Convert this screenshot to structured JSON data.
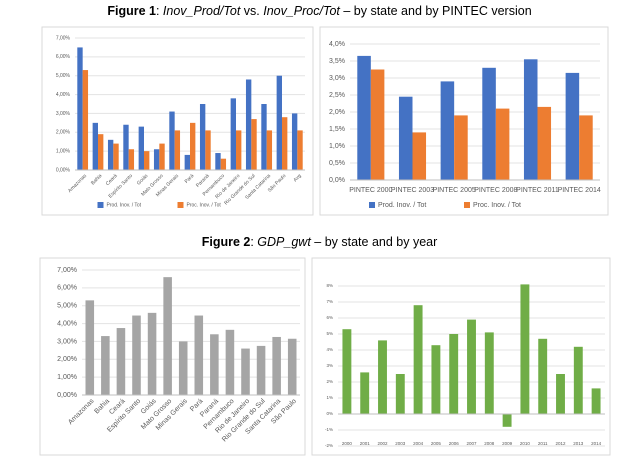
{
  "captions": [
    [
      "Figure 1",
      ": ",
      "Inov_Prod/Tot",
      " vs. ",
      "Inov_Proc/Tot",
      " – by state and by PINTEC version"
    ],
    [
      "Figure 2",
      ": ",
      "GDP_gwt",
      " – by state and by year"
    ]
  ],
  "chart_data": [
    {
      "type": "bar",
      "categories": [
        "Amazonas",
        "Bahia",
        "Ceará",
        "Espírito Santo",
        "Goiás",
        "Mato Grosso",
        "Minas Gerais",
        "Pará",
        "Paraná",
        "Pernambuco",
        "Rio de Janeiro",
        "Rio Grande do Sul",
        "Santa Catarina",
        "São Paulo",
        "Avg"
      ],
      "series": [
        {
          "name": "Prod. Inov. / Tot",
          "color": "#4472c4",
          "values": [
            6.5,
            2.5,
            1.6,
            2.4,
            2.3,
            1.1,
            3.1,
            0.8,
            3.5,
            0.9,
            3.8,
            4.8,
            3.5,
            5.0,
            3.0
          ]
        },
        {
          "name": "Proc. Inov. / Tot",
          "color": "#ed7d31",
          "values": [
            5.3,
            1.9,
            1.4,
            1.1,
            1.0,
            1.4,
            2.1,
            2.5,
            2.1,
            0.6,
            2.1,
            2.7,
            2.1,
            2.8,
            2.1
          ]
        }
      ],
      "ylim": [
        0,
        7
      ],
      "yticks": [
        {
          "value": 0,
          "label": "0,00%"
        },
        {
          "value": 1,
          "label": "1,00%"
        },
        {
          "value": 2,
          "label": "2,00%"
        },
        {
          "value": 3,
          "label": "3,00%"
        },
        {
          "value": 4,
          "label": "4,00%"
        },
        {
          "value": 5,
          "label": "5,00%"
        },
        {
          "value": 6,
          "label": "6,00%"
        },
        {
          "value": 7,
          "label": "7,00%"
        }
      ],
      "grid": true,
      "legend": "bottom"
    },
    {
      "type": "bar",
      "categories": [
        "PINTEC 2000",
        "PINTEC 2003",
        "PINTEC 2005",
        "PINTEC 2008",
        "PINTEC 2011",
        "PINTEC 2014"
      ],
      "series": [
        {
          "name": "Prod. Inov. / Tot",
          "color": "#4472c4",
          "values": [
            3.65,
            2.45,
            2.9,
            3.3,
            3.55,
            3.15
          ]
        },
        {
          "name": "Proc. Inov. / Tot",
          "color": "#ed7d31",
          "values": [
            3.25,
            1.4,
            1.9,
            2.1,
            2.15,
            1.9
          ]
        }
      ],
      "ylim": [
        0,
        4
      ],
      "yticks": [
        {
          "value": 0,
          "label": "0,0%"
        },
        {
          "value": 0.5,
          "label": "0,5%"
        },
        {
          "value": 1,
          "label": "1,0%"
        },
        {
          "value": 1.5,
          "label": "1,5%"
        },
        {
          "value": 2,
          "label": "2,0%"
        },
        {
          "value": 2.5,
          "label": "2,5%"
        },
        {
          "value": 3,
          "label": "3,0%"
        },
        {
          "value": 3.5,
          "label": "3,5%"
        },
        {
          "value": 4,
          "label": "4,0%"
        }
      ],
      "grid": true,
      "legend": "bottom"
    },
    {
      "type": "bar",
      "categories": [
        "Amazonas",
        "Bahia",
        "Ceará",
        "Espírito Santo",
        "Goiás",
        "Mato Grosso",
        "Minas Gerais",
        "Pará",
        "Paraná",
        "Pernambuco",
        "Rio de Janeiro",
        "Rio Grande do Sul",
        "Santa Catarina",
        "São Paulo"
      ],
      "series": [
        {
          "color": "#a5a5a5",
          "values": [
            5.3,
            3.3,
            3.75,
            4.45,
            4.6,
            6.6,
            3.0,
            4.45,
            3.4,
            3.65,
            2.6,
            2.75,
            3.25,
            3.15
          ]
        }
      ],
      "ylim": [
        0,
        7
      ],
      "yticks": [
        {
          "value": 0,
          "label": "0,00%"
        },
        {
          "value": 1,
          "label": "1,00%"
        },
        {
          "value": 2,
          "label": "2,00%"
        },
        {
          "value": 3,
          "label": "3,00%"
        },
        {
          "value": 4,
          "label": "4,00%"
        },
        {
          "value": 5,
          "label": "5,00%"
        },
        {
          "value": 6,
          "label": "6,00%"
        },
        {
          "value": 7,
          "label": "7,00%"
        }
      ],
      "grid": true
    },
    {
      "type": "bar",
      "categories": [
        "2000",
        "2001",
        "2002",
        "2003",
        "2004",
        "2005",
        "2006",
        "2007",
        "2008",
        "2009",
        "2010",
        "2011",
        "2012",
        "2013",
        "2014"
      ],
      "series": [
        {
          "color": "#70ad47",
          "values": [
            5.3,
            2.6,
            4.6,
            2.5,
            6.8,
            4.3,
            5.0,
            5.9,
            5.1,
            -0.8,
            8.1,
            4.7,
            2.5,
            4.2,
            1.6
          ]
        }
      ],
      "ylim": [
        -2,
        8.5
      ],
      "yticks": [
        {
          "value": -2,
          "label": "-2%"
        },
        {
          "value": -1,
          "label": "-1%"
        },
        {
          "value": 0,
          "label": "0%"
        },
        {
          "value": 1,
          "label": "1%"
        },
        {
          "value": 2,
          "label": "2%"
        },
        {
          "value": 3,
          "label": "3%"
        },
        {
          "value": 4,
          "label": "4%"
        },
        {
          "value": 5,
          "label": "5%"
        },
        {
          "value": 6,
          "label": "6%"
        },
        {
          "value": 7,
          "label": "7%"
        },
        {
          "value": 8,
          "label": "8%"
        }
      ],
      "grid": true
    }
  ]
}
